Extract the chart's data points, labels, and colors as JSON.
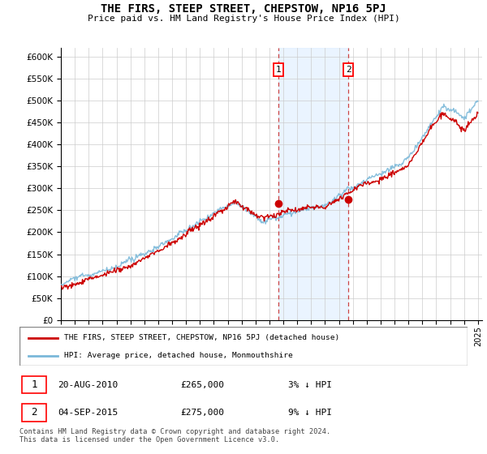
{
  "title": "THE FIRS, STEEP STREET, CHEPSTOW, NP16 5PJ",
  "subtitle": "Price paid vs. HM Land Registry's House Price Index (HPI)",
  "ylim": [
    0,
    620000
  ],
  "yticks": [
    0,
    50000,
    100000,
    150000,
    200000,
    250000,
    300000,
    350000,
    400000,
    450000,
    500000,
    550000,
    600000
  ],
  "year_start": 1995,
  "year_end": 2025,
  "hpi_color": "#7ab8d9",
  "price_color": "#cc0000",
  "sale1_date": 2010.64,
  "sale1_price": 265000,
  "sale2_date": 2015.67,
  "sale2_price": 275000,
  "legend_line1": "THE FIRS, STEEP STREET, CHEPSTOW, NP16 5PJ (detached house)",
  "legend_line2": "HPI: Average price, detached house, Monmouthshire",
  "table_row1_num": "1",
  "table_row1_date": "20-AUG-2010",
  "table_row1_price": "£265,000",
  "table_row1_hpi": "3% ↓ HPI",
  "table_row2_num": "2",
  "table_row2_date": "04-SEP-2015",
  "table_row2_price": "£275,000",
  "table_row2_hpi": "9% ↓ HPI",
  "footer": "Contains HM Land Registry data © Crown copyright and database right 2024.\nThis data is licensed under the Open Government Licence v3.0.",
  "background_color": "#ffffff",
  "grid_color": "#cccccc",
  "shade_color": "#ddeeff"
}
